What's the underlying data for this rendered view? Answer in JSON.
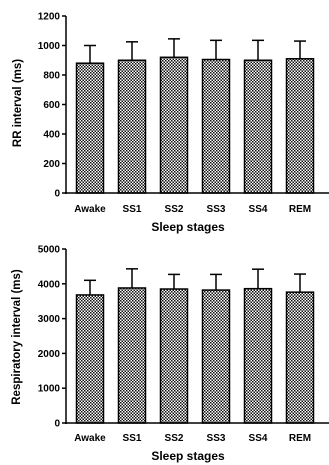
{
  "chart_data": [
    {
      "type": "bar",
      "categories": [
        "Awake",
        "SS1",
        "SS2",
        "SS3",
        "SS4",
        "REM"
      ],
      "values": [
        880,
        900,
        920,
        905,
        900,
        910
      ],
      "errors": [
        120,
        125,
        125,
        130,
        135,
        120
      ],
      "xlabel": "Sleep stages",
      "ylabel": "RR interval  (ms)",
      "ylim": [
        0,
        1200
      ],
      "yticks": [
        "0",
        "200",
        "400",
        "600",
        "800",
        "1000",
        "1200"
      ],
      "fill": "checkered",
      "error_bars": "upper"
    },
    {
      "type": "bar",
      "categories": [
        "Awake",
        "SS1",
        "SS2",
        "SS3",
        "SS4",
        "REM"
      ],
      "values": [
        3680,
        3880,
        3850,
        3820,
        3860,
        3760
      ],
      "errors": [
        420,
        550,
        420,
        450,
        560,
        520
      ],
      "xlabel": "Sleep stages",
      "ylabel": "Respiratory interval (ms)",
      "ylim": [
        0,
        5000
      ],
      "yticks": [
        "0",
        "1000",
        "2000",
        "3000",
        "4000",
        "5000"
      ],
      "fill": "checkered",
      "error_bars": "upper"
    }
  ]
}
